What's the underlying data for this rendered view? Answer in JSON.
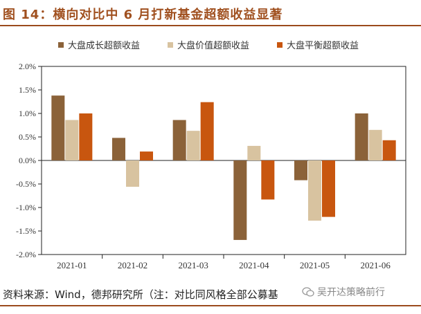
{
  "title": "图 14：横向对比中 6 月打新基金超额收益显著",
  "source": "资料来源：Wind，德邦研究所（注：对比同风格全部公募基",
  "watermark": "吴开达策略前行",
  "colors": {
    "large_growth": "#8b6239",
    "large_value": "#d8c3a0",
    "large_balanced": "#c8560f",
    "title": "#a0501f",
    "rule": "#9b4a1c"
  },
  "chart_data": {
    "type": "bar",
    "categories": [
      "2021-01",
      "2021-02",
      "2021-03",
      "2021-04",
      "2021-05",
      "2021-06"
    ],
    "series": [
      {
        "name": "大盘成长超额收益",
        "color": "#8b6239",
        "values": [
          1.38,
          0.48,
          0.86,
          -1.69,
          -0.42,
          1.0
        ]
      },
      {
        "name": "大盘价值超额收益",
        "color": "#d8c3a0",
        "values": [
          0.86,
          -0.56,
          0.63,
          0.31,
          -1.28,
          0.65
        ]
      },
      {
        "name": "大盘平衡超额收益",
        "color": "#c8560f",
        "values": [
          1.0,
          0.19,
          1.24,
          -0.83,
          -1.2,
          0.43
        ]
      }
    ],
    "ylim": [
      -2.0,
      2.0
    ],
    "yticks": [
      "2.0%",
      "1.5%",
      "1.0%",
      "0.5%",
      "0.0%",
      "-0.5%",
      "-1.0%",
      "-1.5%",
      "-2.0%"
    ],
    "ytick_values": [
      2.0,
      1.5,
      1.0,
      0.5,
      0.0,
      -0.5,
      -1.0,
      -1.5,
      -2.0
    ],
    "grid": false,
    "legend": "top"
  }
}
